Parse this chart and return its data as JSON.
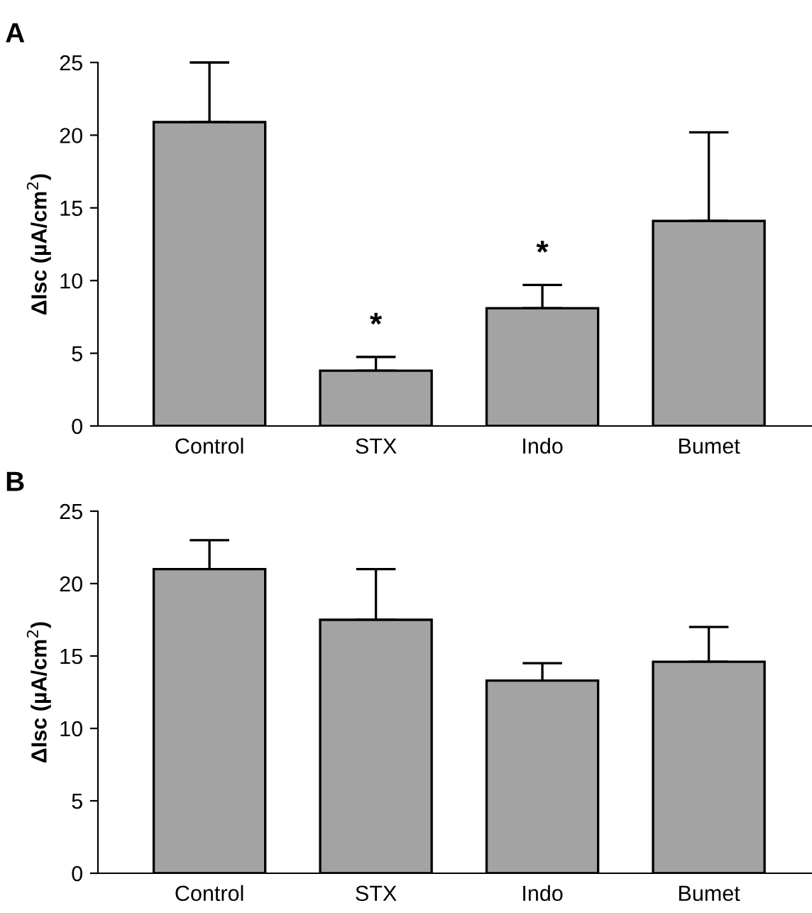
{
  "chart_data": [
    {
      "type": "bar",
      "title": "A",
      "ylabel": "ΔIsc (µA/cm$^{2}$)",
      "categories": [
        "Control",
        "STX",
        "Indo",
        "Bumet"
      ],
      "values": [
        20.9,
        3.8,
        8.1,
        14.1
      ],
      "errors": [
        [
          20.9,
          25.0
        ],
        [
          3.8,
          4.75
        ],
        [
          8.1,
          9.7
        ],
        [
          14.1,
          20.2
        ]
      ],
      "colors": [
        "#a3a3a3",
        "#a3a3a3",
        "#a3a3a3",
        "#a3a3a3"
      ],
      "ylim": [
        0,
        25
      ],
      "yticks": [
        0,
        5,
        10,
        15,
        20,
        25
      ],
      "grid": false,
      "legend": false,
      "annotations": [
        {
          "text": "*",
          "x": "STX",
          "y": 4.75
        },
        {
          "text": "*",
          "x": "Indo",
          "y": 9.7
        }
      ]
    },
    {
      "type": "bar",
      "title": "B",
      "ylabel": "ΔIsc (µA/cm$^{2}$)",
      "categories": [
        "Control",
        "STX",
        "Indo",
        "Bumet"
      ],
      "values": [
        21.0,
        17.5,
        13.3,
        14.6
      ],
      "errors": [
        [
          21.0,
          23.0
        ],
        [
          17.5,
          21.0
        ],
        [
          13.3,
          14.5
        ],
        [
          14.6,
          17.0
        ]
      ],
      "colors": [
        "#a3a3a3",
        "#a3a3a3",
        "#a3a3a3",
        "#a3a3a3"
      ],
      "ylim": [
        0,
        25
      ],
      "yticks": [
        0,
        5,
        10,
        15,
        20,
        25
      ],
      "grid": false,
      "legend": false
    }
  ]
}
